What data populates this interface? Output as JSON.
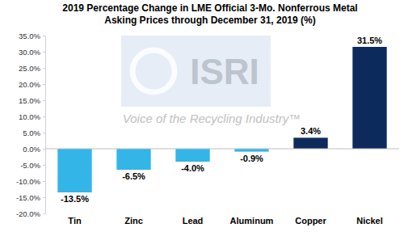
{
  "chart_data": {
    "type": "bar",
    "title": "2019 Percentage Change in LME Official 3-Mo. Nonferrous Metal Asking Prices through December 31, 2019 (%)",
    "categories": [
      "Tin",
      "Zinc",
      "Lead",
      "Aluminum",
      "Copper",
      "Nickel"
    ],
    "values": [
      -13.5,
      -6.5,
      -4.0,
      -0.9,
      3.4,
      31.5
    ],
    "value_labels": [
      "-13.5%",
      "-6.5%",
      "-4.0%",
      "-0.9%",
      "3.4%",
      "31.5%"
    ],
    "colors": [
      "#33b5e8",
      "#33b5e8",
      "#33b5e8",
      "#33b5e8",
      "#0c2a5c",
      "#0c2a5c"
    ],
    "ylim": [
      -20,
      35
    ],
    "yticks": [
      {
        "value": -20,
        "label": "-20.0%"
      },
      {
        "value": -15,
        "label": "-15.0%"
      },
      {
        "value": -10,
        "label": "-10.0%"
      },
      {
        "value": -5,
        "label": "-5.0%"
      },
      {
        "value": 0,
        "label": "0.0%"
      },
      {
        "value": 5,
        "label": "5.0%"
      },
      {
        "value": 10,
        "label": "10.0%"
      },
      {
        "value": 15,
        "label": "15.0%"
      },
      {
        "value": 20,
        "label": "20.0%"
      },
      {
        "value": 25,
        "label": "25.0%"
      },
      {
        "value": 30,
        "label": "30.0%"
      },
      {
        "value": 35,
        "label": "35.0%"
      }
    ],
    "grid": false,
    "data_labels": true,
    "annotations": [
      "ISRI",
      "Voice of the Recycling Industry™"
    ]
  }
}
